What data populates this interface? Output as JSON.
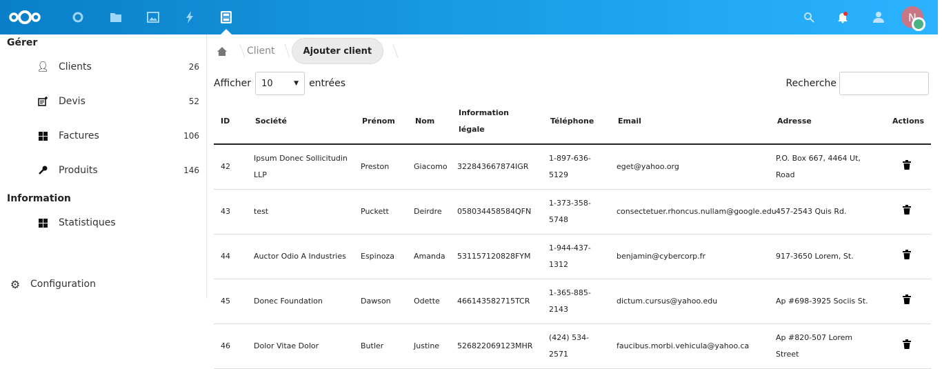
{
  "header": {
    "apps": [
      "dashboard-icon",
      "files-icon",
      "photos-icon",
      "activity-icon",
      "clients-app-icon"
    ],
    "notification_color": "#e9322d",
    "avatar_initial": "N",
    "avatar_color": "#c87685",
    "status_color": "#49b382"
  },
  "sidebar": {
    "sections": [
      {
        "title": "Gérer"
      },
      {
        "title": "Information"
      }
    ],
    "items": [
      {
        "label": "Clients",
        "count": "26"
      },
      {
        "label": "Devis",
        "count": "52"
      },
      {
        "label": "Factures",
        "count": "106"
      },
      {
        "label": "Produits",
        "count": "146"
      },
      {
        "label": "Statistiques"
      }
    ],
    "settings": "Configuration"
  },
  "breadcrumb": {
    "items": [
      "Client"
    ],
    "current": "Ajouter client"
  },
  "table_controls": {
    "show": "Afficher",
    "length": "10",
    "entries": "entrées",
    "search": "Recherche"
  },
  "table": {
    "headers": [
      "ID",
      "Société",
      "Prénom",
      "Nom",
      "Information légale",
      "Téléphone",
      "Email",
      "Adresse",
      "Actions"
    ],
    "rows": [
      [
        "42",
        "Ipsum Donec Sollicitudin LLP",
        "Preston",
        "Giacomo",
        "322843667874IGR",
        "1-897-636-5129",
        "eget@yahoo.org",
        "P.O. Box 667, 4464 Ut, Road"
      ],
      [
        "43",
        "test",
        "Puckett",
        "Deirdre",
        "058034458584QFN",
        "1-373-358-5748",
        "consectetuer.rhoncus.nullam@google.edu",
        "457-2543 Quis Rd."
      ],
      [
        "44",
        "Auctor Odio A Industries",
        "Espinoza",
        "Amanda",
        "531157120828FYM",
        "1-944-437-1312",
        "benjamin@cybercorp.fr",
        "917-3650 Lorem, St."
      ],
      [
        "45",
        "Donec Foundation",
        "Dawson",
        "Odette",
        "466143582715TCR",
        "1-365-885-2143",
        "dictum.cursus@yahoo.edu",
        "Ap #698-3925 Sociis St."
      ],
      [
        "46",
        "Dolor Vitae Dolor",
        "Butler",
        "Justine",
        "526822069123MHR",
        "(424) 534-2571",
        "faucibus.morbi.vehicula@yahoo.ca",
        "Ap #820-507 Lorem Street"
      ]
    ]
  }
}
